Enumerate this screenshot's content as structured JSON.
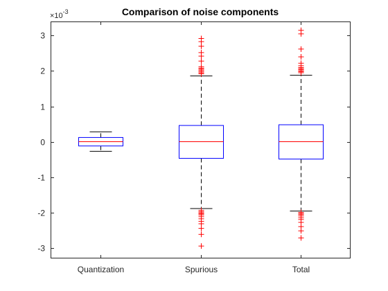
{
  "chart_data": {
    "type": "box",
    "title": "Comparison of noise components",
    "xlabel": "",
    "ylabel": "",
    "exponent_label": "×10",
    "exponent_power": "-3",
    "ylim": [
      -3.3,
      3.4
    ],
    "yticks": [
      -3,
      -2,
      -1,
      0,
      1,
      2,
      3
    ],
    "ytick_labels": [
      "-3",
      "-2",
      "-1",
      "0",
      "1",
      "2",
      "3"
    ],
    "grid": false,
    "categories": [
      "Quantization",
      "Spurious",
      "Total"
    ],
    "boxes": [
      {
        "name": "Quantization",
        "whisker_low": -0.27,
        "q1": -0.12,
        "median": 0.0,
        "q3": 0.12,
        "whisker_high": 0.28,
        "outliers": []
      },
      {
        "name": "Spurious",
        "whisker_low": -1.89,
        "q1": -0.47,
        "median": 0.0,
        "q3": 0.46,
        "whisker_high": 1.86,
        "outliers": [
          2.92,
          2.83,
          2.7,
          2.52,
          2.42,
          2.28,
          2.12,
          2.08,
          2.05,
          2.02,
          1.98,
          1.95,
          1.92,
          -1.94,
          -1.98,
          -2.01,
          -2.04,
          -2.07,
          -2.12,
          -2.18,
          -2.25,
          -2.32,
          -2.45,
          -2.62,
          -2.95
        ]
      },
      {
        "name": "Total",
        "whisker_low": -1.96,
        "q1": -0.49,
        "median": 0.0,
        "q3": 0.48,
        "whisker_high": 1.88,
        "outliers": [
          3.15,
          3.05,
          2.62,
          2.4,
          2.22,
          2.15,
          2.1,
          2.07,
          2.04,
          2.01,
          1.98,
          1.95,
          -2.0,
          -2.03,
          -2.06,
          -2.1,
          -2.15,
          -2.2,
          -2.28,
          -2.4,
          -2.52,
          -2.72
        ]
      }
    ],
    "colors": {
      "box": "#0000ff",
      "median": "#ff0000",
      "whisker": "#000000",
      "outlier": "#ff0000",
      "axis": "#262626"
    }
  }
}
